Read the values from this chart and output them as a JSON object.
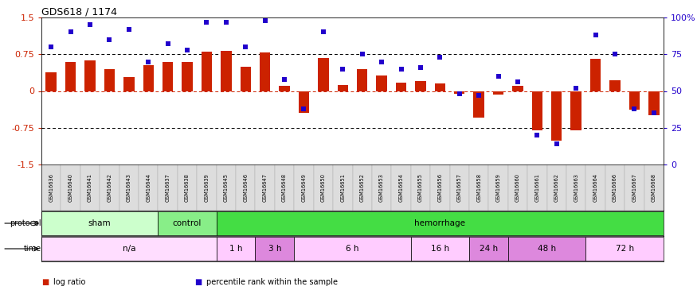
{
  "title": "GDS618 / 1174",
  "samples": [
    "GSM16636",
    "GSM16640",
    "GSM16641",
    "GSM16642",
    "GSM16643",
    "GSM16644",
    "GSM16637",
    "GSM16638",
    "GSM16639",
    "GSM16645",
    "GSM16646",
    "GSM16647",
    "GSM16648",
    "GSM16649",
    "GSM16650",
    "GSM16651",
    "GSM16652",
    "GSM16653",
    "GSM16654",
    "GSM16655",
    "GSM16656",
    "GSM16657",
    "GSM16658",
    "GSM16659",
    "GSM16660",
    "GSM16661",
    "GSM16662",
    "GSM16663",
    "GSM16664",
    "GSM16666",
    "GSM16667",
    "GSM16668"
  ],
  "log_ratio": [
    0.38,
    0.6,
    0.62,
    0.45,
    0.28,
    0.52,
    0.6,
    0.6,
    0.8,
    0.82,
    0.5,
    0.78,
    0.1,
    -0.45,
    0.68,
    0.12,
    0.45,
    0.32,
    0.17,
    0.2,
    0.15,
    -0.05,
    -0.55,
    -0.08,
    0.1,
    -0.8,
    -1.02,
    -0.8,
    0.65,
    0.22,
    -0.38,
    -0.5
  ],
  "percentile_rank": [
    80,
    90,
    95,
    85,
    92,
    70,
    82,
    78,
    97,
    97,
    80,
    98,
    58,
    38,
    90,
    65,
    75,
    70,
    65,
    66,
    73,
    48,
    47,
    60,
    56,
    20,
    14,
    52,
    88,
    75,
    38,
    35
  ],
  "protocol_groups": [
    {
      "label": "sham",
      "start": 0,
      "end": 5,
      "color": "#ccffcc"
    },
    {
      "label": "control",
      "start": 6,
      "end": 8,
      "color": "#88ee88"
    },
    {
      "label": "hemorrhage",
      "start": 9,
      "end": 31,
      "color": "#44dd44"
    }
  ],
  "time_groups": [
    {
      "label": "n/a",
      "start": 0,
      "end": 8,
      "color": "#ffddff"
    },
    {
      "label": "1 h",
      "start": 9,
      "end": 10,
      "color": "#ffccff"
    },
    {
      "label": "3 h",
      "start": 11,
      "end": 12,
      "color": "#dd88dd"
    },
    {
      "label": "6 h",
      "start": 13,
      "end": 18,
      "color": "#ffccff"
    },
    {
      "label": "16 h",
      "start": 19,
      "end": 21,
      "color": "#ffccff"
    },
    {
      "label": "24 h",
      "start": 22,
      "end": 23,
      "color": "#dd88dd"
    },
    {
      "label": "48 h",
      "start": 24,
      "end": 27,
      "color": "#dd88dd"
    },
    {
      "label": "72 h",
      "start": 28,
      "end": 31,
      "color": "#ffccff"
    }
  ],
  "bar_color": "#cc2200",
  "dot_color": "#2200cc",
  "ylim_left": [
    -1.5,
    1.5
  ],
  "ylim_right": [
    0,
    100
  ],
  "yticks_left": [
    -1.5,
    -0.75,
    0.0,
    0.75,
    1.5
  ],
  "ytick_labels_left": [
    "-1.5",
    "-0.75",
    "0",
    "0.75",
    "1.5"
  ],
  "yticks_right": [
    0,
    25,
    50,
    75,
    100
  ],
  "ytick_labels_right": [
    "0",
    "25",
    "50",
    "75",
    "100%"
  ],
  "legend_items": [
    {
      "color": "#cc2200",
      "label": "log ratio"
    },
    {
      "color": "#2200cc",
      "label": "percentile rank within the sample"
    }
  ]
}
